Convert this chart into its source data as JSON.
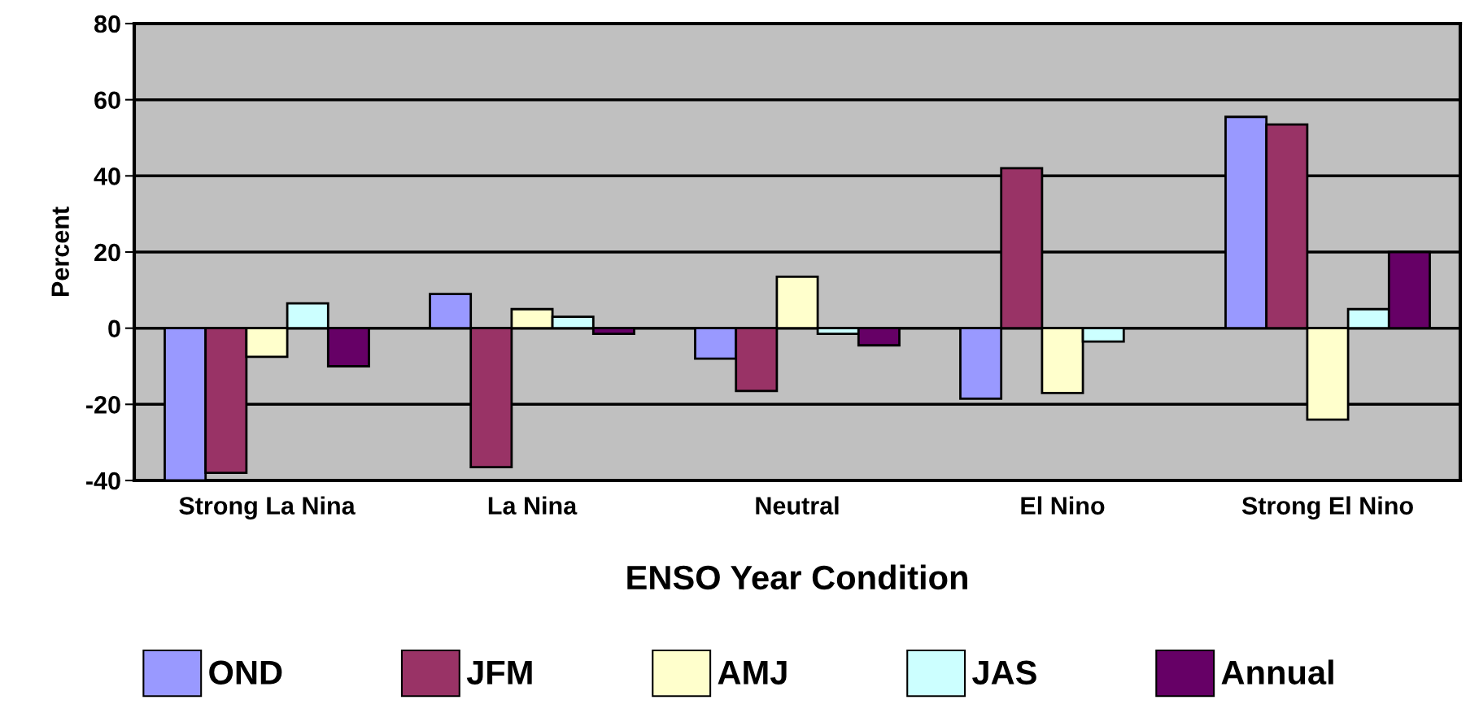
{
  "chart_data": {
    "type": "bar",
    "xlabel": "ENSO Year Condition",
    "ylabel": "Percent",
    "categories": [
      "Strong La Nina",
      "La Nina",
      "Neutral",
      "El Nino",
      "Strong El Nino"
    ],
    "series": [
      {
        "name": "OND",
        "color": "#9999ff",
        "values": [
          -40,
          9,
          -8,
          -18.5,
          55.5
        ]
      },
      {
        "name": "JFM",
        "color": "#993366",
        "values": [
          -38,
          -36.5,
          -16.5,
          42,
          53.5
        ]
      },
      {
        "name": "AMJ",
        "color": "#ffffcc",
        "values": [
          -7.5,
          5,
          13.5,
          -17,
          -24
        ]
      },
      {
        "name": "JAS",
        "color": "#ccffff",
        "values": [
          6.5,
          3,
          -1.5,
          -3.5,
          5
        ]
      },
      {
        "name": "Annual",
        "color": "#660066",
        "values": [
          -10,
          -1.5,
          -4.5,
          null,
          20
        ]
      }
    ],
    "ylim": [
      -40,
      80
    ],
    "yticks": [
      -40,
      -20,
      0,
      20,
      40,
      60,
      80
    ],
    "grid": "y",
    "legend": "bottom"
  }
}
